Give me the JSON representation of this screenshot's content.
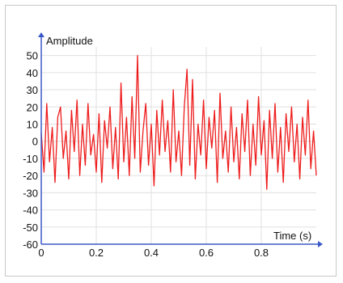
{
  "chart_data": {
    "type": "line",
    "title": "",
    "xlabel": "Time (s)",
    "ylabel": "Amplitude",
    "xlim": [
      0,
      1.0
    ],
    "ylim": [
      -60,
      55
    ],
    "x_ticks": [
      "0",
      "0.2",
      "0.4",
      "0.6",
      "0.8"
    ],
    "y_ticks": [
      "50",
      "40",
      "30",
      "20",
      "10",
      "0",
      "-10",
      "-20",
      "-30",
      "-40",
      "-50",
      "-60"
    ],
    "grid": true,
    "colors": {
      "line": "#ee1c1c",
      "axis": "#3a58c8",
      "grid": "#e0e0e0"
    },
    "series": [
      {
        "x": [
          0.0,
          0.01,
          0.02,
          0.03,
          0.04,
          0.05,
          0.06,
          0.07,
          0.08,
          0.09,
          0.1,
          0.11,
          0.12,
          0.13,
          0.14,
          0.15,
          0.16,
          0.17,
          0.18,
          0.19,
          0.2,
          0.21,
          0.22,
          0.23,
          0.24,
          0.25,
          0.26,
          0.27,
          0.28,
          0.29,
          0.3,
          0.31,
          0.32,
          0.33,
          0.34,
          0.35,
          0.36,
          0.37,
          0.38,
          0.39,
          0.4,
          0.41,
          0.42,
          0.43,
          0.44,
          0.45,
          0.46,
          0.47,
          0.48,
          0.49,
          0.5,
          0.51,
          0.52,
          0.53,
          0.54,
          0.55,
          0.56,
          0.57,
          0.58,
          0.59,
          0.6,
          0.61,
          0.62,
          0.63,
          0.64,
          0.65,
          0.66,
          0.67,
          0.68,
          0.69,
          0.7,
          0.71,
          0.72,
          0.73,
          0.74,
          0.75,
          0.76,
          0.77,
          0.78,
          0.79,
          0.8,
          0.81,
          0.82,
          0.83,
          0.84,
          0.85,
          0.86,
          0.87,
          0.88,
          0.89,
          0.9,
          0.91,
          0.92,
          0.93,
          0.94,
          0.95,
          0.96,
          0.97,
          0.98,
          0.99,
          1.0
        ],
        "values": [
          5,
          -18,
          22,
          -12,
          8,
          -24,
          14,
          20,
          -10,
          6,
          -22,
          18,
          -6,
          24,
          -20,
          10,
          -14,
          22,
          -8,
          4,
          -18,
          16,
          -24,
          12,
          -4,
          20,
          -16,
          8,
          -22,
          34,
          -12,
          14,
          -20,
          26,
          -10,
          50,
          -18,
          6,
          22,
          -14,
          10,
          -26,
          18,
          -8,
          24,
          -6,
          12,
          -18,
          30,
          -12,
          6,
          -20,
          20,
          42,
          -14,
          36,
          -22,
          10,
          -8,
          24,
          -16,
          14,
          -4,
          18,
          -24,
          28,
          -10,
          6,
          -18,
          20,
          -12,
          8,
          -22,
          16,
          -6,
          24,
          -20,
          10,
          -14,
          26,
          -8,
          12,
          -28,
          18,
          -10,
          22,
          -18,
          8,
          -24,
          16,
          -6,
          20,
          -12,
          10,
          -22,
          14,
          -8,
          24,
          -16,
          6,
          -20
        ]
      }
    ]
  }
}
